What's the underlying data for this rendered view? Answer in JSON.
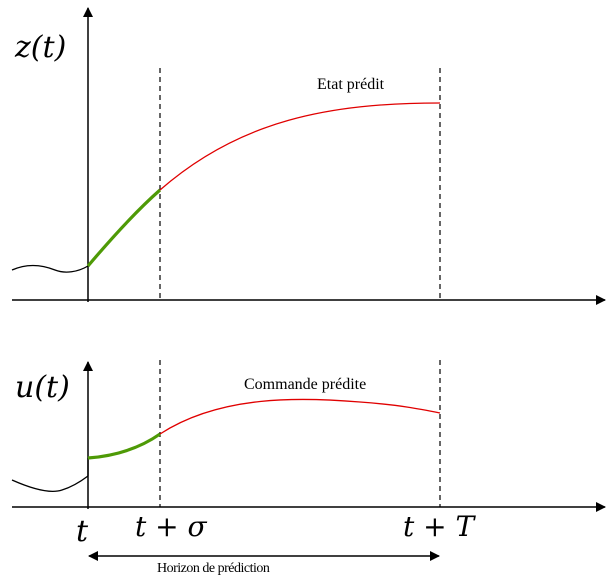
{
  "top_plot": {
    "axis_label": "z(t)",
    "curve_label": "Etat prédit"
  },
  "bottom_plot": {
    "axis_label": "u(t)",
    "curve_label": "Commande prédite"
  },
  "time_ticks": {
    "t": "t",
    "t_sigma": "t + σ",
    "t_T": "t + T"
  },
  "horizon": {
    "label": "Horizon de prédiction"
  },
  "colors": {
    "past": "#000000",
    "applied": "#4e9a06",
    "predicted": "#e00000",
    "guide": "#000000"
  }
}
